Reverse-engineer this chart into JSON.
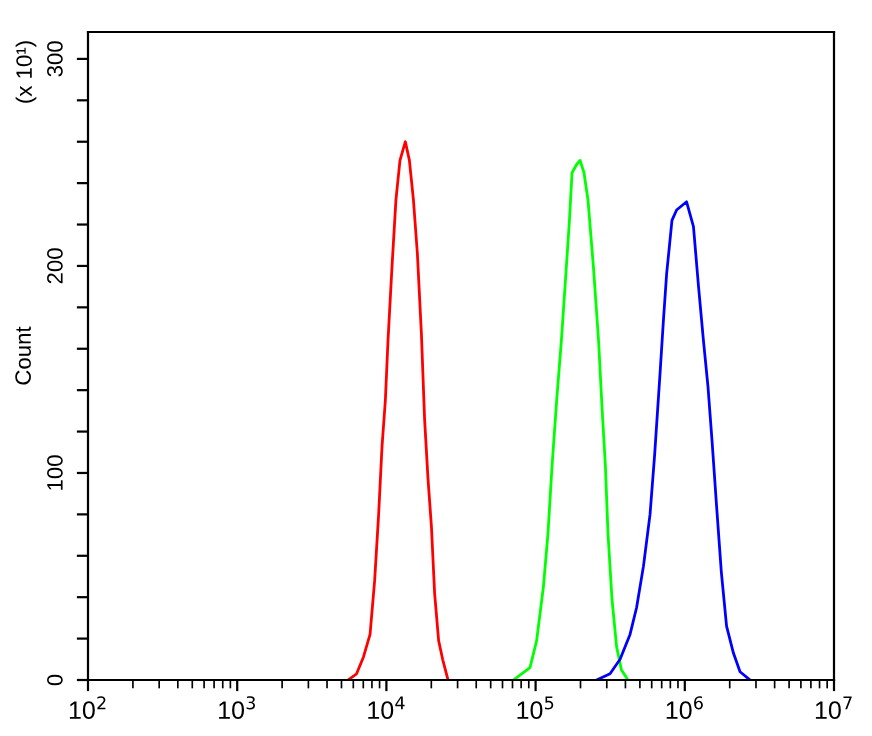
{
  "chart_data": {
    "type": "line",
    "ylabel": "Count",
    "log": "x",
    "grid": false,
    "marker": "none",
    "line_style": "solid",
    "annotations": [
      "(x 10¹)"
    ],
    "xlim": [
      100,
      10000000
    ],
    "xticks": [
      {
        "value": 100,
        "label": "10$^{2}$"
      },
      {
        "value": 1000,
        "label": "10$^{3}$"
      },
      {
        "value": 10000,
        "label": "10$^{4}$"
      },
      {
        "value": 100000,
        "label": "10$^{5}$"
      },
      {
        "value": 1000000,
        "label": "10$^{6}$"
      },
      {
        "value": 10000000,
        "label": "10$^{7}$"
      }
    ],
    "ylim": [
      0,
      313
    ],
    "yticks": [
      0,
      {
        "value": 20,
        "label": null
      },
      {
        "value": 40,
        "label": null
      },
      {
        "value": 60,
        "label": null
      },
      {
        "value": 80,
        "label": null
      },
      100,
      {
        "value": 120,
        "label": null
      },
      {
        "value": 140,
        "label": null
      },
      {
        "value": 160,
        "label": null
      },
      {
        "value": 180,
        "label": null
      },
      200,
      {
        "value": 220,
        "label": null
      },
      {
        "value": 240,
        "label": null
      },
      {
        "value": 260,
        "label": null
      },
      {
        "value": 280,
        "label": null
      },
      300
    ],
    "series": [
      {
        "color": "#ff0000",
        "x": [
          5530,
          6310,
          7010,
          7770,
          8340,
          8870,
          9350,
          9840,
          10250,
          10910,
          11590,
          12330,
          13400,
          14260,
          15170,
          16130,
          17170,
          18030,
          19010,
          20040,
          21040,
          22390,
          23820,
          25880
        ],
        "values": [
          0,
          3,
          11,
          22,
          48,
          80,
          113,
          135,
          164,
          200,
          232,
          251,
          260,
          251,
          232,
          206,
          167,
          126,
          97,
          74,
          42,
          19,
          10,
          0
        ]
      },
      {
        "color": "#00ff00",
        "x": [
          71000,
          91700,
          101600,
          112800,
          121100,
          128800,
          138400,
          148900,
          158500,
          168600,
          175500,
          188400,
          198600,
          211000,
          224400,
          243800,
          264200,
          278600,
          293800,
          305500,
          325100,
          349100,
          375800,
          415900
        ],
        "values": [
          0,
          6,
          19,
          45,
          71,
          103,
          135,
          164,
          193,
          222,
          245,
          249,
          251,
          245,
          232,
          200,
          164,
          132,
          103,
          71,
          39,
          16,
          5,
          0
        ]
      },
      {
        "color": "#0000ff",
        "x": [
          256400,
          315500,
          368300,
          429500,
          475300,
          528400,
          584800,
          628100,
          682300,
          719400,
          755100,
          820400,
          881000,
          1028000,
          1143000,
          1236000,
          1333000,
          1429000,
          1521000,
          1633000,
          1758000,
          1905000,
          2118000,
          2345000,
          2735000
        ],
        "values": [
          0,
          3,
          10,
          22,
          35,
          55,
          80,
          109,
          148,
          174,
          196,
          222,
          227,
          231,
          219,
          190,
          164,
          142,
          116,
          84,
          52,
          26,
          13,
          4,
          0
        ]
      }
    ]
  }
}
